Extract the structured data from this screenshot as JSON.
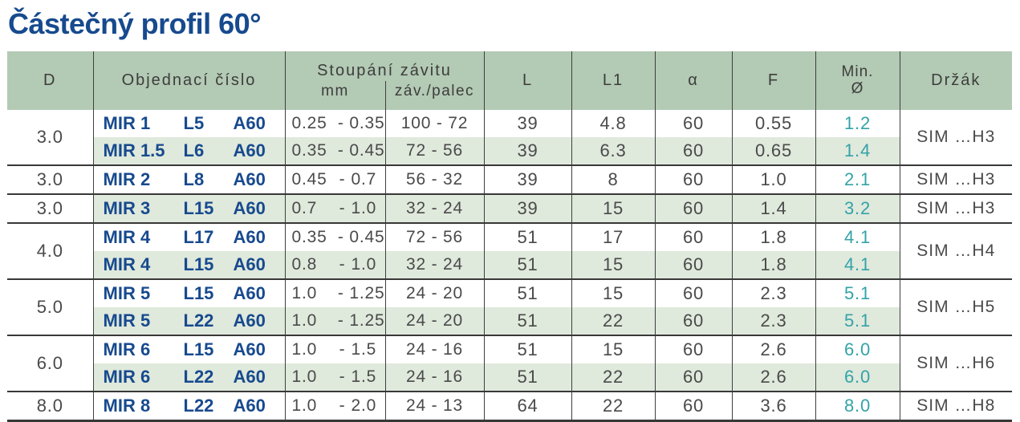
{
  "title": "Částečný profil 60°",
  "misc": {
    "range_dash": "-"
  },
  "colors": {
    "header_bg": "#b3cab4",
    "stripe_bg": "#dfe9dc",
    "blue": "#174a8e",
    "teal": "#33a3a8",
    "text": "#4a4a4a",
    "line": "#3f3f3f",
    "line2": "#383838"
  },
  "table": {
    "headers": {
      "d": "D",
      "order": "Objednací číslo",
      "pitch_group": "Stoupání závitu",
      "pitch_mm": "mm",
      "pitch_tpi": "záv./palec",
      "l": "L",
      "l1": "L1",
      "alpha": "α",
      "f": "F",
      "min_line1": "Min.",
      "min_line2": "Ø",
      "holder": "Držák"
    },
    "groups": [
      {
        "d": "3.0",
        "holder": "SIM …H3",
        "rows": [
          {
            "order": [
              "MIR 1",
              "L5",
              "A60"
            ],
            "mm_from": "0.25",
            "mm_to": "0.35",
            "tpi": "100 - 72",
            "l": "39",
            "l1": "4.8",
            "alpha": "60",
            "f": "0.55",
            "min": "1.2",
            "shaded": false
          },
          {
            "order": [
              "MIR 1.5",
              "L6",
              "A60"
            ],
            "mm_from": "0.35",
            "mm_to": "0.45",
            "tpi": "72 - 56",
            "l": "39",
            "l1": "6.3",
            "alpha": "60",
            "f": "0.65",
            "min": "1.4",
            "shaded": true
          }
        ]
      },
      {
        "d": "3.0",
        "holder": "SIM …H3",
        "rows": [
          {
            "order": [
              "MIR 2",
              "L8",
              "A60"
            ],
            "mm_from": "0.45",
            "mm_to": "0.7",
            "tpi": "56 - 32",
            "l": "39",
            "l1": "8",
            "alpha": "60",
            "f": "1.0",
            "min": "2.1",
            "shaded": false
          }
        ]
      },
      {
        "d": "3.0",
        "holder": "SIM …H3",
        "rows": [
          {
            "order": [
              "MIR 3",
              "L15",
              "A60"
            ],
            "mm_from": "0.7",
            "mm_to": "1.0",
            "tpi": "32 - 24",
            "l": "39",
            "l1": "15",
            "alpha": "60",
            "f": "1.4",
            "min": "3.2",
            "shaded": true
          }
        ]
      },
      {
        "d": "4.0",
        "holder": "SIM …H4",
        "rows": [
          {
            "order": [
              "MIR 4",
              "L17",
              "A60"
            ],
            "mm_from": "0.35",
            "mm_to": "0.45",
            "tpi": "72 - 56",
            "l": "51",
            "l1": "17",
            "alpha": "60",
            "f": "1.8",
            "min": "4.1",
            "shaded": false
          },
          {
            "order": [
              "MIR 4",
              "L15",
              "A60"
            ],
            "mm_from": "0.8",
            "mm_to": "1.0",
            "tpi": "32 - 24",
            "l": "51",
            "l1": "15",
            "alpha": "60",
            "f": "1.8",
            "min": "4.1",
            "shaded": true
          }
        ]
      },
      {
        "d": "5.0",
        "holder": "SIM …H5",
        "rows": [
          {
            "order": [
              "MIR 5",
              "L15",
              "A60"
            ],
            "mm_from": "1.0",
            "mm_to": "1.25",
            "tpi": "24 - 20",
            "l": "51",
            "l1": "15",
            "alpha": "60",
            "f": "2.3",
            "min": "5.1",
            "shaded": false
          },
          {
            "order": [
              "MIR 5",
              "L22",
              "A60"
            ],
            "mm_from": "1.0",
            "mm_to": "1.25",
            "tpi": "24 - 20",
            "l": "51",
            "l1": "22",
            "alpha": "60",
            "f": "2.3",
            "min": "5.1",
            "shaded": true
          }
        ]
      },
      {
        "d": "6.0",
        "holder": "SIM …H6",
        "rows": [
          {
            "order": [
              "MIR 6",
              "L15",
              "A60"
            ],
            "mm_from": "1.0",
            "mm_to": "1.5",
            "tpi": "24 - 16",
            "l": "51",
            "l1": "15",
            "alpha": "60",
            "f": "2.6",
            "min": "6.0",
            "shaded": false
          },
          {
            "order": [
              "MIR 6",
              "L22",
              "A60"
            ],
            "mm_from": "1.0",
            "mm_to": "1.5",
            "tpi": "24 - 16",
            "l": "51",
            "l1": "22",
            "alpha": "60",
            "f": "2.6",
            "min": "6.0",
            "shaded": true
          }
        ]
      },
      {
        "d": "8.0",
        "holder": "SIM …H8",
        "rows": [
          {
            "order": [
              "MIR 8",
              "L22",
              "A60"
            ],
            "mm_from": "1.0",
            "mm_to": "2.0",
            "tpi": "24 - 13",
            "l": "64",
            "l1": "22",
            "alpha": "60",
            "f": "3.6",
            "min": "8.0",
            "shaded": false
          }
        ]
      }
    ]
  }
}
